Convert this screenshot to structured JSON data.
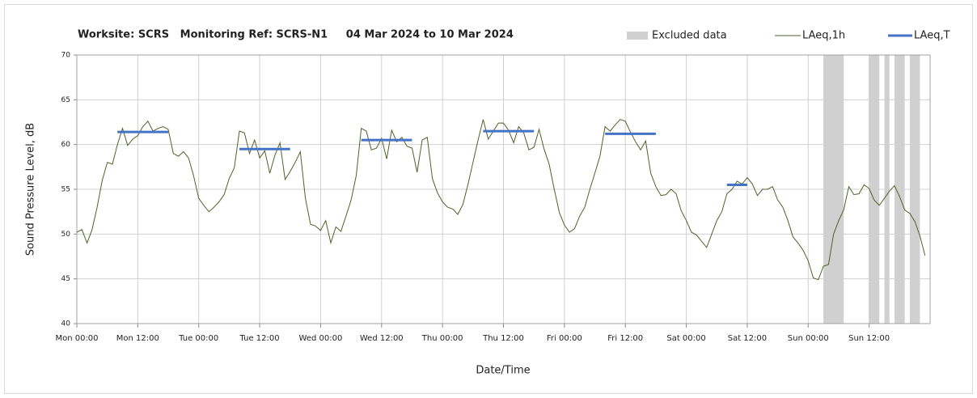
{
  "chart_data": {
    "type": "line",
    "title": "Worksite: SCRS   Monitoring Ref: SCRS-N1     04 Mar 2024 to 10 Mar 2024",
    "x_label": "Date/Time",
    "y_label": "Sound Pressure Level, dB",
    "xlim": [
      0,
      168
    ],
    "xticks": [
      {
        "value": 0,
        "label": "Mon 00:00"
      },
      {
        "value": 12,
        "label": "Mon 12:00"
      },
      {
        "value": 24,
        "label": "Tue 00:00"
      },
      {
        "value": 36,
        "label": "Tue 12:00"
      },
      {
        "value": 48,
        "label": "Wed 00:00"
      },
      {
        "value": 60,
        "label": "Wed 12:00"
      },
      {
        "value": 72,
        "label": "Thu 00:00"
      },
      {
        "value": 84,
        "label": "Thu 12:00"
      },
      {
        "value": 96,
        "label": "Fri 00:00"
      },
      {
        "value": 108,
        "label": "Fri 12:00"
      },
      {
        "value": 120,
        "label": "Sat 00:00"
      },
      {
        "value": 132,
        "label": "Sat 12:00"
      },
      {
        "value": 144,
        "label": "Sun 00:00"
      },
      {
        "value": 156,
        "label": "Sun 12:00"
      }
    ],
    "ylim": [
      40,
      70
    ],
    "yticks": [
      40,
      45,
      50,
      55,
      60,
      65,
      70
    ],
    "grid": true,
    "x": [
      0,
      1,
      2,
      3,
      4,
      5,
      6,
      7,
      8,
      9,
      10,
      11,
      12,
      13,
      14,
      15,
      16,
      17,
      18,
      19,
      20,
      21,
      22,
      23,
      24,
      25,
      26,
      27,
      28,
      29,
      30,
      31,
      32,
      33,
      34,
      35,
      36,
      37,
      38,
      39,
      40,
      41,
      42,
      43,
      44,
      45,
      46,
      47,
      48,
      49,
      50,
      51,
      52,
      53,
      54,
      55,
      56,
      57,
      58,
      59,
      60,
      61,
      62,
      63,
      64,
      65,
      66,
      67,
      68,
      69,
      70,
      71,
      72,
      73,
      74,
      75,
      76,
      77,
      78,
      79,
      80,
      81,
      82,
      83,
      84,
      85,
      86,
      87,
      88,
      89,
      90,
      91,
      92,
      93,
      94,
      95,
      96,
      97,
      98,
      99,
      100,
      101,
      102,
      103,
      104,
      105,
      106,
      107,
      108,
      109,
      110,
      111,
      112,
      113,
      114,
      115,
      116,
      117,
      118,
      119,
      120,
      121,
      122,
      123,
      124,
      125,
      126,
      127,
      128,
      129,
      130,
      131,
      132,
      133,
      134,
      135,
      136,
      137,
      138,
      139,
      140,
      141,
      142,
      143,
      144,
      145,
      146,
      147,
      148,
      149,
      150,
      151,
      152,
      153,
      154,
      155,
      156,
      157,
      158,
      159,
      160,
      161,
      162,
      163,
      164,
      165,
      166,
      167
    ],
    "series": [
      {
        "name": "LAeq,1h",
        "color": "#4f6228",
        "values": [
          50.2,
          50.5,
          49,
          50.5,
          53,
          56,
          58,
          57.8,
          60,
          61.8,
          59.9,
          60.6,
          61,
          62,
          62.6,
          61.5,
          61.8,
          62,
          61.7,
          59,
          58.7,
          59.2,
          58.5,
          56.5,
          54,
          53.2,
          52.5,
          53,
          53.6,
          54.4,
          56.2,
          57.4,
          61.5,
          61.3,
          59,
          60.5,
          58.5,
          59.3,
          56.8,
          58.8,
          60.2,
          56.1,
          57,
          58,
          59.2,
          54,
          51.1,
          50.9,
          50.4,
          51.5,
          49,
          50.8,
          50.3,
          52,
          53.8,
          56.5,
          61.8,
          61.5,
          59.4,
          59.6,
          60.7,
          58.4,
          61.6,
          60.3,
          60.8,
          59.8,
          59.6,
          56.9,
          60.5,
          60.8,
          56.2,
          54.6,
          53.6,
          53,
          52.8,
          52.2,
          53.3,
          55.5,
          58,
          60.5,
          62.8,
          60.6,
          61.5,
          62.4,
          62.4,
          61.6,
          60.2,
          62,
          61.3,
          59.4,
          59.7,
          61.7,
          59.5,
          57.8,
          55,
          52.4,
          51,
          50.2,
          50.6,
          52,
          53,
          55,
          56.8,
          58.7,
          62,
          61.5,
          62.2,
          62.8,
          62.6,
          61.4,
          60.3,
          59.4,
          60.4,
          56.8,
          55.3,
          54.3,
          54.4,
          55,
          54.5,
          52.6,
          51.5,
          50.2,
          49.9,
          49.2,
          48.5,
          50,
          51.5,
          52.5,
          54.5,
          55,
          55.9,
          55.6,
          56.3,
          55.6,
          54.3,
          55,
          55,
          55.3,
          53.8,
          53,
          51.5,
          49.7,
          49,
          48.2,
          47,
          45.1,
          44.9,
          46.4,
          46.6,
          50,
          51.5,
          52.7,
          55.3,
          54.4,
          54.5,
          55.5,
          55.1,
          53.8,
          53.2,
          54,
          54.8,
          55.4,
          54.2,
          52.7,
          52.3,
          51.4,
          49.8,
          47.6
        ]
      }
    ],
    "lines": [
      {
        "name": "LAeq,T",
        "color": "#4472c4",
        "starts": [
          8,
          32,
          56,
          80,
          104,
          128
        ],
        "ends": [
          18,
          42,
          66,
          90,
          114,
          132
        ],
        "values": [
          61.4,
          59.5,
          60.5,
          61.5,
          61.2,
          55.5
        ]
      }
    ],
    "excluded": {
      "name": "Excluded data",
      "color": "#d0d0d0",
      "starts": [
        147,
        156,
        159,
        161,
        164
      ],
      "ends": [
        151,
        158,
        160,
        163,
        166
      ]
    }
  }
}
